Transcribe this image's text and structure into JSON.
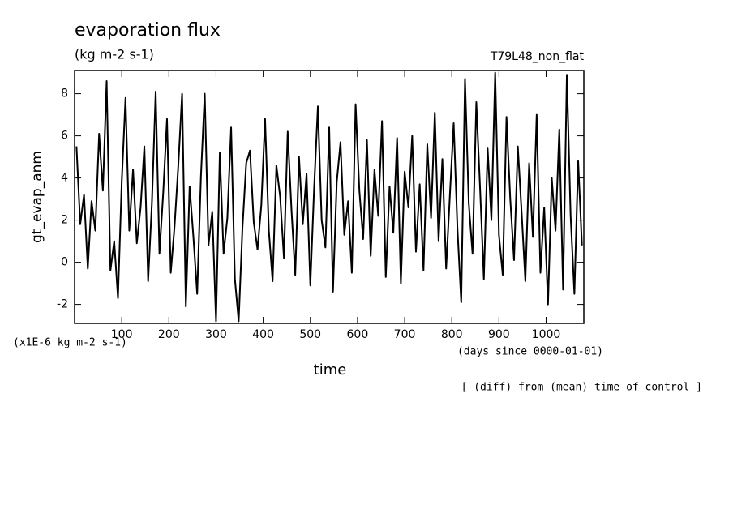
{
  "chart_data": {
    "type": "line",
    "title": "evaporation flux",
    "subtitle": "(kg m-2 s-1)",
    "experiment": "T79L48_non_flat",
    "ylabel": "gt_evap_anm",
    "yunits": "(x1E-6 kg m-2 s-1)",
    "xlabel": "time",
    "xunits": "(days since 0000-01-01)",
    "annotation": "[ (diff) from (mean) time of control ]",
    "xlim": [
      0,
      1080
    ],
    "ylim": [
      -2.9,
      9.1
    ],
    "xticks": [
      100,
      200,
      300,
      400,
      500,
      600,
      700,
      800,
      900,
      1000
    ],
    "yticks": [
      -2,
      0,
      2,
      4,
      6,
      8
    ],
    "x": [
      4,
      12,
      20,
      28,
      36,
      44,
      52,
      60,
      68,
      76,
      84,
      92,
      100,
      108,
      116,
      124,
      132,
      140,
      148,
      156,
      164,
      172,
      180,
      188,
      196,
      204,
      212,
      220,
      228,
      236,
      244,
      252,
      260,
      268,
      276,
      284,
      292,
      300,
      308,
      316,
      324,
      332,
      340,
      348,
      356,
      364,
      372,
      380,
      388,
      396,
      404,
      412,
      420,
      428,
      436,
      444,
      452,
      460,
      468,
      476,
      484,
      492,
      500,
      508,
      516,
      524,
      532,
      540,
      548,
      556,
      564,
      572,
      580,
      588,
      596,
      604,
      612,
      620,
      628,
      636,
      644,
      652,
      660,
      668,
      676,
      684,
      692,
      700,
      708,
      716,
      724,
      732,
      740,
      748,
      756,
      764,
      772,
      780,
      788,
      796,
      804,
      812,
      820,
      828,
      836,
      844,
      852,
      860,
      868,
      876,
      884,
      892,
      900,
      908,
      916,
      924,
      932,
      940,
      948,
      956,
      964,
      972,
      980,
      988,
      996,
      1004,
      1012,
      1020,
      1028,
      1036,
      1044,
      1052,
      1060,
      1068,
      1076
    ],
    "series": [
      {
        "name": "gt_evap_anm",
        "color": "#000000",
        "values": [
          5.5,
          1.8,
          3.2,
          -0.3,
          2.9,
          1.5,
          6.1,
          3.4,
          8.6,
          -0.4,
          1.0,
          -1.7,
          3.8,
          7.8,
          1.5,
          4.4,
          0.9,
          2.6,
          5.5,
          -0.9,
          2.8,
          8.1,
          0.4,
          3.3,
          6.8,
          -0.5,
          1.7,
          4.6,
          8.0,
          -2.1,
          3.6,
          1.2,
          -1.5,
          4.1,
          8.0,
          0.8,
          2.4,
          -2.8,
          5.2,
          0.4,
          2.1,
          6.4,
          -0.8,
          -2.8,
          1.6,
          4.7,
          5.3,
          1.9,
          0.6,
          2.7,
          6.8,
          1.5,
          -0.9,
          4.6,
          3.1,
          0.2,
          6.2,
          2.5,
          -0.6,
          5.0,
          1.8,
          4.2,
          -1.1,
          3.5,
          7.4,
          2.0,
          0.7,
          6.4,
          -1.4,
          3.8,
          5.7,
          1.3,
          2.9,
          -0.5,
          7.5,
          3.4,
          1.1,
          5.8,
          0.3,
          4.4,
          2.2,
          6.7,
          -0.7,
          3.6,
          1.4,
          5.9,
          -1.0,
          4.3,
          2.6,
          6.0,
          0.5,
          3.7,
          -0.4,
          5.6,
          2.1,
          7.1,
          1.0,
          4.9,
          -0.3,
          3.2,
          6.6,
          1.6,
          -1.9,
          8.7,
          2.8,
          0.4,
          7.6,
          3.5,
          -0.8,
          5.4,
          2.0,
          9.0,
          1.3,
          -0.6,
          6.9,
          3.0,
          0.1,
          5.5,
          2.4,
          -0.9,
          4.7,
          1.2,
          7.0,
          -0.5,
          2.6,
          -2.0,
          4.0,
          1.5,
          6.3,
          -1.3,
          8.9,
          2.2,
          -1.5,
          4.8,
          0.8
        ]
      }
    ]
  }
}
